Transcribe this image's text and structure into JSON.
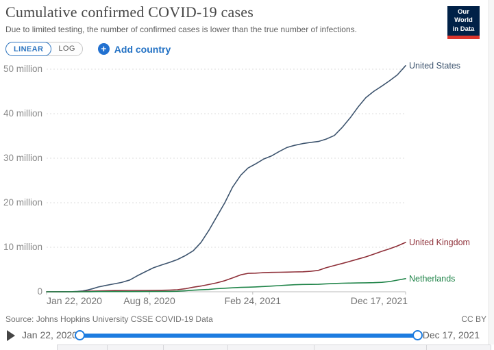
{
  "header": {
    "title": "Cumulative confirmed COVID-19 cases",
    "subtitle": "Due to limited testing, the number of confirmed cases is lower than the true number of infections.",
    "logo_line1": "Our World",
    "logo_line2": "in Data"
  },
  "controls": {
    "linear_label": "LINEAR",
    "log_label": "LOG",
    "add_country_label": "Add country",
    "plus_icon_glyph": "+"
  },
  "chart_data": {
    "type": "line",
    "title": "Cumulative confirmed COVID-19 cases",
    "xlabel": "",
    "ylabel": "",
    "x_domain_days": [
      0,
      695
    ],
    "ylim": [
      0,
      52000000
    ],
    "grid": true,
    "legend_position": "right-end-labels",
    "value_unit": "millions of cases",
    "yticks": [
      {
        "value": 0,
        "label": "0"
      },
      {
        "value": 10,
        "label": "10 million"
      },
      {
        "value": 20,
        "label": "20 million"
      },
      {
        "value": 30,
        "label": "30 million"
      },
      {
        "value": 40,
        "label": "40 million"
      },
      {
        "value": 50,
        "label": "50 million"
      }
    ],
    "xticks": [
      {
        "day": 0,
        "label": "Jan 22, 2020"
      },
      {
        "day": 199,
        "label": "Aug 8, 2020"
      },
      {
        "day": 399,
        "label": "Feb 24, 2021"
      },
      {
        "day": 695,
        "label": "Dec 17, 2021"
      }
    ],
    "series": [
      {
        "id": "united-states",
        "name": "United States",
        "color": "#3d546e",
        "points_day_millions": [
          [
            0,
            0
          ],
          [
            30,
            0.01
          ],
          [
            50,
            0.03
          ],
          [
            60,
            0.09
          ],
          [
            70,
            0.19
          ],
          [
            80,
            0.42
          ],
          [
            90,
            0.72
          ],
          [
            100,
            1.07
          ],
          [
            115,
            1.43
          ],
          [
            131,
            1.79
          ],
          [
            145,
            2.1
          ],
          [
            161,
            2.64
          ],
          [
            175,
            3.55
          ],
          [
            192,
            4.56
          ],
          [
            207,
            5.4
          ],
          [
            223,
            6.03
          ],
          [
            238,
            6.6
          ],
          [
            253,
            7.23
          ],
          [
            268,
            8.1
          ],
          [
            284,
            9.21
          ],
          [
            299,
            11.1
          ],
          [
            314,
            13.75
          ],
          [
            329,
            16.8
          ],
          [
            345,
            20.0
          ],
          [
            360,
            23.5
          ],
          [
            376,
            26.2
          ],
          [
            390,
            27.8
          ],
          [
            404,
            28.7
          ],
          [
            420,
            29.8
          ],
          [
            435,
            30.5
          ],
          [
            450,
            31.5
          ],
          [
            465,
            32.4
          ],
          [
            480,
            32.9
          ],
          [
            496,
            33.3
          ],
          [
            511,
            33.55
          ],
          [
            526,
            33.75
          ],
          [
            541,
            34.3
          ],
          [
            557,
            35.1
          ],
          [
            572,
            36.9
          ],
          [
            588,
            39.1
          ],
          [
            603,
            41.5
          ],
          [
            618,
            43.6
          ],
          [
            633,
            45.0
          ],
          [
            649,
            46.2
          ],
          [
            664,
            47.4
          ],
          [
            679,
            48.7
          ],
          [
            695,
            50.8
          ]
        ]
      },
      {
        "id": "united-kingdom",
        "name": "United Kingdom",
        "color": "#8e2f38",
        "points_day_millions": [
          [
            0,
            0
          ],
          [
            60,
            0.02
          ],
          [
            80,
            0.12
          ],
          [
            100,
            0.18
          ],
          [
            131,
            0.27
          ],
          [
            161,
            0.31
          ],
          [
            192,
            0.31
          ],
          [
            223,
            0.34
          ],
          [
            238,
            0.39
          ],
          [
            253,
            0.46
          ],
          [
            268,
            0.67
          ],
          [
            284,
            1.03
          ],
          [
            299,
            1.29
          ],
          [
            314,
            1.63
          ],
          [
            329,
            2.0
          ],
          [
            345,
            2.49
          ],
          [
            360,
            3.11
          ],
          [
            376,
            3.82
          ],
          [
            390,
            4.14
          ],
          [
            404,
            4.18
          ],
          [
            420,
            4.3
          ],
          [
            435,
            4.35
          ],
          [
            450,
            4.39
          ],
          [
            465,
            4.42
          ],
          [
            480,
            4.46
          ],
          [
            496,
            4.49
          ],
          [
            511,
            4.6
          ],
          [
            526,
            4.8
          ],
          [
            541,
            5.4
          ],
          [
            557,
            5.9
          ],
          [
            572,
            6.35
          ],
          [
            588,
            6.86
          ],
          [
            603,
            7.35
          ],
          [
            618,
            7.84
          ],
          [
            633,
            8.45
          ],
          [
            649,
            9.1
          ],
          [
            664,
            9.65
          ],
          [
            679,
            10.3
          ],
          [
            695,
            11.1
          ]
        ]
      },
      {
        "id": "netherlands",
        "name": "Netherlands",
        "color": "#208449",
        "points_day_millions": [
          [
            0,
            0
          ],
          [
            80,
            0.02
          ],
          [
            100,
            0.04
          ],
          [
            131,
            0.046
          ],
          [
            161,
            0.05
          ],
          [
            192,
            0.057
          ],
          [
            223,
            0.07
          ],
          [
            238,
            0.1
          ],
          [
            253,
            0.13
          ],
          [
            268,
            0.22
          ],
          [
            284,
            0.36
          ],
          [
            299,
            0.44
          ],
          [
            314,
            0.53
          ],
          [
            329,
            0.69
          ],
          [
            345,
            0.8
          ],
          [
            360,
            0.89
          ],
          [
            376,
            0.98
          ],
          [
            390,
            1.03
          ],
          [
            404,
            1.09
          ],
          [
            420,
            1.18
          ],
          [
            435,
            1.27
          ],
          [
            450,
            1.38
          ],
          [
            465,
            1.49
          ],
          [
            480,
            1.59
          ],
          [
            496,
            1.64
          ],
          [
            511,
            1.66
          ],
          [
            526,
            1.68
          ],
          [
            541,
            1.78
          ],
          [
            557,
            1.86
          ],
          [
            572,
            1.92
          ],
          [
            588,
            1.96
          ],
          [
            603,
            1.99
          ],
          [
            618,
            2.01
          ],
          [
            633,
            2.05
          ],
          [
            649,
            2.12
          ],
          [
            664,
            2.3
          ],
          [
            679,
            2.62
          ],
          [
            695,
            2.95
          ]
        ]
      }
    ]
  },
  "footer": {
    "source": "Source: Johns Hopkins University CSSE COVID-19 Data",
    "license": "CC BY"
  },
  "timeline": {
    "start_label": "Jan 22, 2020",
    "end_label": "Dec 17, 2021"
  },
  "colors": {
    "accent_blue": "#2271c4",
    "slider_blue": "#1d7ce0",
    "logo_navy": "#002147",
    "logo_red": "#dc352c",
    "gridline": "#dcdcdc",
    "axis": "#bbbbbb"
  }
}
